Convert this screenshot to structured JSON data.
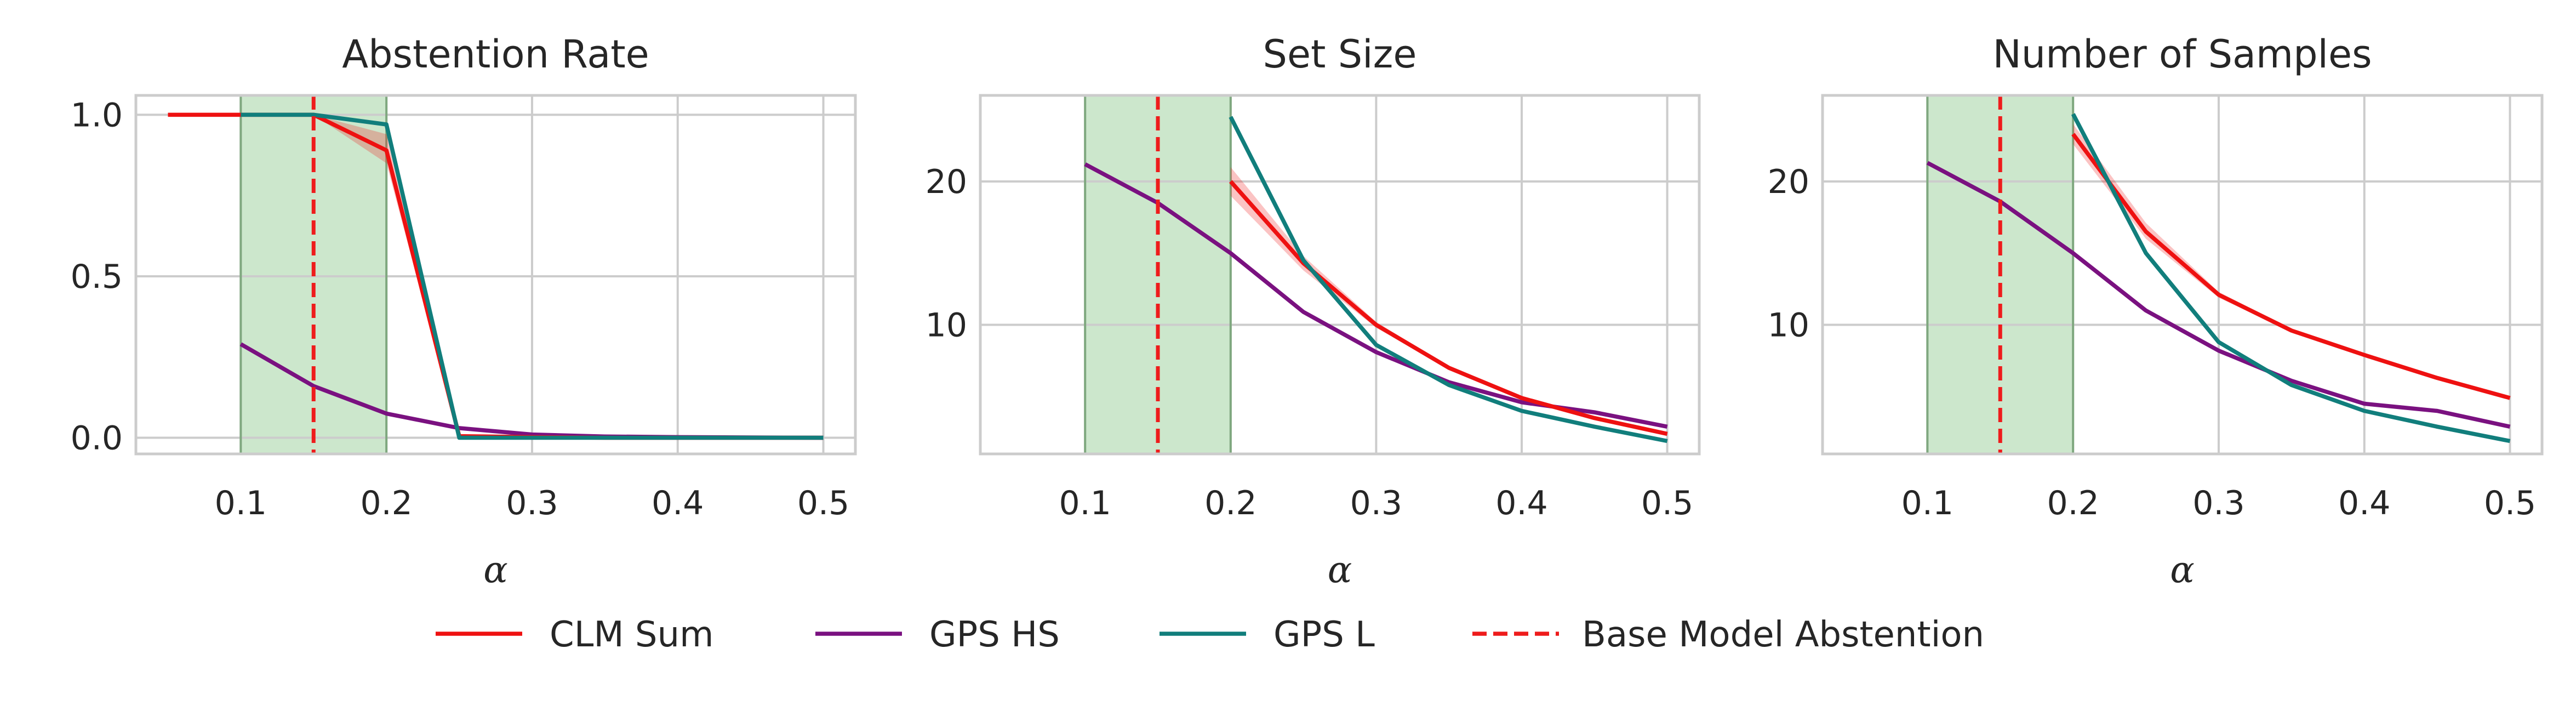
{
  "chart_data": [
    {
      "type": "line",
      "title": "Abstention Rate",
      "xlabel": "α",
      "ylabel": "",
      "xlim": [
        0.028,
        0.522
      ],
      "ylim": [
        -0.05,
        1.06
      ],
      "xticks": [
        0.1,
        0.2,
        0.3,
        0.4,
        0.5
      ],
      "xtick_labels": [
        "0.1",
        "0.2",
        "0.3",
        "0.4",
        "0.5"
      ],
      "yticks": [
        0.0,
        0.5,
        1.0
      ],
      "ytick_labels": [
        "0.0",
        "0.5",
        "1.0"
      ],
      "shaded_region": {
        "x": [
          0.1,
          0.2
        ],
        "color": "#a3d3a3"
      },
      "vline": {
        "x": 0.15,
        "color": "#ee1c1c",
        "style": "dashed",
        "name": "Base Model Abstention"
      },
      "series": [
        {
          "name": "CLM Sum",
          "color": "#ee1111",
          "x": [
            0.05,
            0.1,
            0.15,
            0.2,
            0.25,
            0.3,
            0.35,
            0.4,
            0.45,
            0.5
          ],
          "values": [
            1.0,
            1.0,
            1.0,
            0.89,
            0.005,
            0.002,
            0.0,
            0.0,
            0.0,
            0.0
          ],
          "band_lower": [
            1.0,
            1.0,
            1.0,
            0.85,
            0.003,
            0.001,
            0.0,
            0.0,
            0.0,
            0.0
          ],
          "band_upper": [
            1.0,
            1.0,
            1.0,
            0.94,
            0.008,
            0.003,
            0.0,
            0.0,
            0.0,
            0.0
          ]
        },
        {
          "name": "GPS HS",
          "color": "#7a1180",
          "x": [
            0.1,
            0.15,
            0.2,
            0.25,
            0.3,
            0.35,
            0.4,
            0.45,
            0.5
          ],
          "values": [
            0.29,
            0.16,
            0.075,
            0.03,
            0.01,
            0.004,
            0.002,
            0.001,
            0.0
          ]
        },
        {
          "name": "GPS L",
          "color": "#117e7c",
          "x": [
            0.1,
            0.15,
            0.2,
            0.25,
            0.3,
            0.35,
            0.4,
            0.45,
            0.5
          ],
          "values": [
            1.0,
            1.0,
            0.97,
            0.0,
            0.0,
            0.0,
            0.0,
            0.0,
            0.0
          ]
        }
      ]
    },
    {
      "type": "line",
      "title": "Set Size",
      "xlabel": "α",
      "ylabel": "",
      "xlim": [
        0.028,
        0.522
      ],
      "ylim": [
        1.0,
        26.0
      ],
      "xticks": [
        0.1,
        0.2,
        0.3,
        0.4,
        0.5
      ],
      "xtick_labels": [
        "0.1",
        "0.2",
        "0.3",
        "0.4",
        "0.5"
      ],
      "yticks": [
        10,
        20
      ],
      "ytick_labels": [
        "10",
        "20"
      ],
      "shaded_region": {
        "x": [
          0.1,
          0.2
        ],
        "color": "#a3d3a3"
      },
      "vline": {
        "x": 0.15,
        "color": "#ee1c1c",
        "style": "dashed",
        "name": "Base Model Abstention"
      },
      "series": [
        {
          "name": "CLM Sum",
          "color": "#ee1111",
          "x": [
            0.2,
            0.25,
            0.3,
            0.35,
            0.4,
            0.45,
            0.5
          ],
          "values": [
            20.0,
            14.3,
            10.0,
            7.0,
            4.9,
            3.5,
            2.4
          ],
          "band_lower": [
            19.0,
            13.8,
            9.8,
            6.9,
            4.8,
            3.4,
            2.3
          ],
          "band_upper": [
            21.0,
            14.8,
            10.2,
            7.1,
            5.0,
            3.6,
            2.5
          ]
        },
        {
          "name": "GPS HS",
          "color": "#7a1180",
          "x": [
            0.1,
            0.15,
            0.2,
            0.25,
            0.3,
            0.35,
            0.4,
            0.45,
            0.5
          ],
          "values": [
            21.2,
            18.5,
            15.0,
            10.9,
            8.1,
            6.0,
            4.6,
            3.9,
            2.9
          ]
        },
        {
          "name": "GPS L",
          "color": "#117e7c",
          "x": [
            0.2,
            0.25,
            0.3,
            0.35,
            0.4,
            0.45,
            0.5
          ],
          "values": [
            24.5,
            14.5,
            8.6,
            5.8,
            4.0,
            2.9,
            1.9
          ]
        }
      ]
    },
    {
      "type": "line",
      "title": "Number of Samples",
      "xlabel": "α",
      "ylabel": "",
      "xlim": [
        0.028,
        0.522
      ],
      "ylim": [
        1.0,
        26.0
      ],
      "xticks": [
        0.1,
        0.2,
        0.3,
        0.4,
        0.5
      ],
      "xtick_labels": [
        "0.1",
        "0.2",
        "0.3",
        "0.4",
        "0.5"
      ],
      "yticks": [
        10,
        20
      ],
      "ytick_labels": [
        "10",
        "20"
      ],
      "shaded_region": {
        "x": [
          0.1,
          0.2
        ],
        "color": "#a3d3a3"
      },
      "vline": {
        "x": 0.15,
        "color": "#ee1c1c",
        "style": "dashed",
        "name": "Base Model Abstention"
      },
      "series": [
        {
          "name": "CLM Sum",
          "color": "#ee1111",
          "x": [
            0.2,
            0.25,
            0.3,
            0.35,
            0.4,
            0.45,
            0.5
          ],
          "values": [
            23.3,
            16.5,
            12.1,
            9.6,
            7.9,
            6.3,
            4.9
          ],
          "band_lower": [
            22.6,
            16.0,
            11.9,
            9.5,
            7.8,
            6.2,
            4.8
          ],
          "band_upper": [
            24.0,
            17.1,
            12.3,
            9.7,
            8.0,
            6.4,
            5.0
          ]
        },
        {
          "name": "GPS HS",
          "color": "#7a1180",
          "x": [
            0.1,
            0.15,
            0.2,
            0.25,
            0.3,
            0.35,
            0.4,
            0.45,
            0.5
          ],
          "values": [
            21.3,
            18.6,
            15.0,
            11.0,
            8.2,
            6.1,
            4.5,
            4.0,
            2.9
          ]
        },
        {
          "name": "GPS L",
          "color": "#117e7c",
          "x": [
            0.2,
            0.25,
            0.3,
            0.35,
            0.4,
            0.45,
            0.5
          ],
          "values": [
            24.7,
            15.0,
            8.8,
            5.8,
            4.0,
            2.9,
            1.9
          ]
        }
      ]
    }
  ],
  "legend": {
    "placement": "bottom-center",
    "entries": [
      {
        "name": "CLM Sum",
        "color": "#ee1111",
        "style": "solid"
      },
      {
        "name": "GPS HS",
        "color": "#7a1180",
        "style": "solid"
      },
      {
        "name": "GPS L",
        "color": "#117e7c",
        "style": "solid"
      },
      {
        "name": "Base Model Abstention",
        "color": "#ee1c1c",
        "style": "dashed"
      }
    ]
  }
}
